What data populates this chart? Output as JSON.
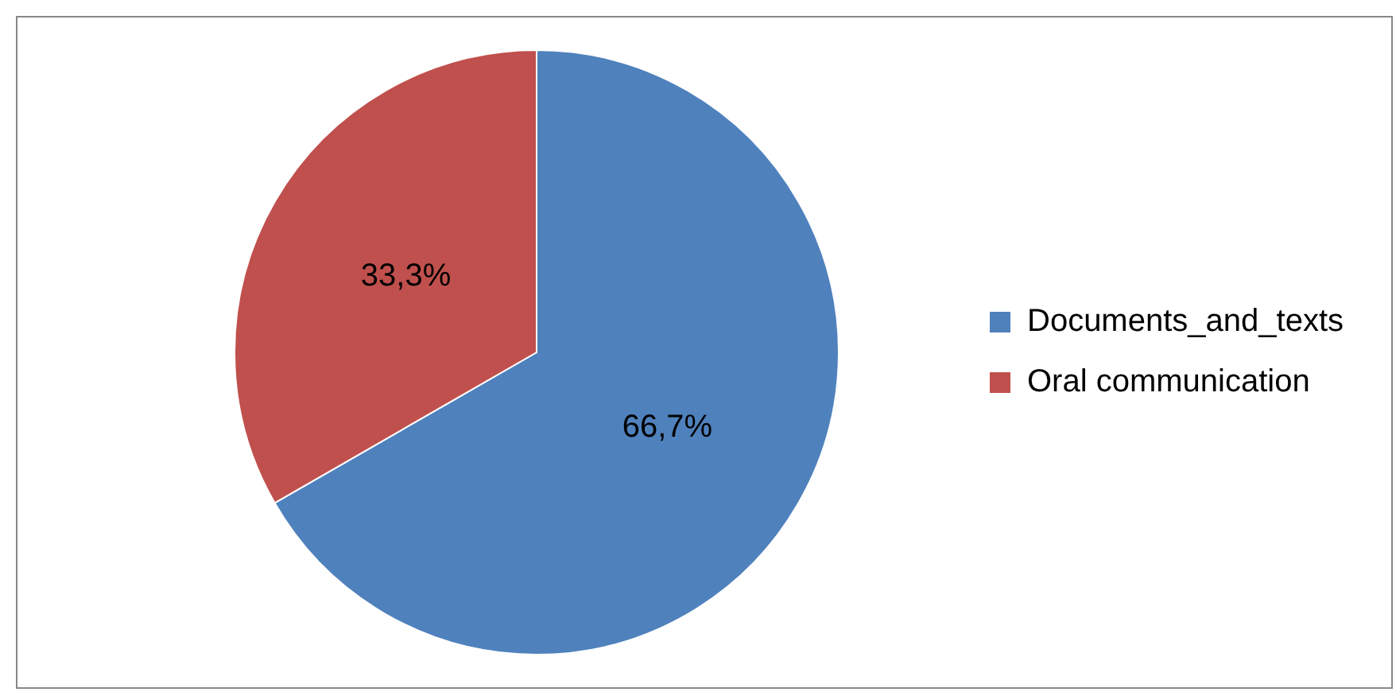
{
  "chart_data": {
    "type": "pie",
    "categories": [
      "Documents_and_texts",
      "Oral communication"
    ],
    "values": [
      66.7,
      33.3
    ],
    "colors": [
      "#4f81bd",
      "#c0504d"
    ],
    "value_labels": [
      "66,7%",
      "33,3%"
    ],
    "legend": "right"
  }
}
